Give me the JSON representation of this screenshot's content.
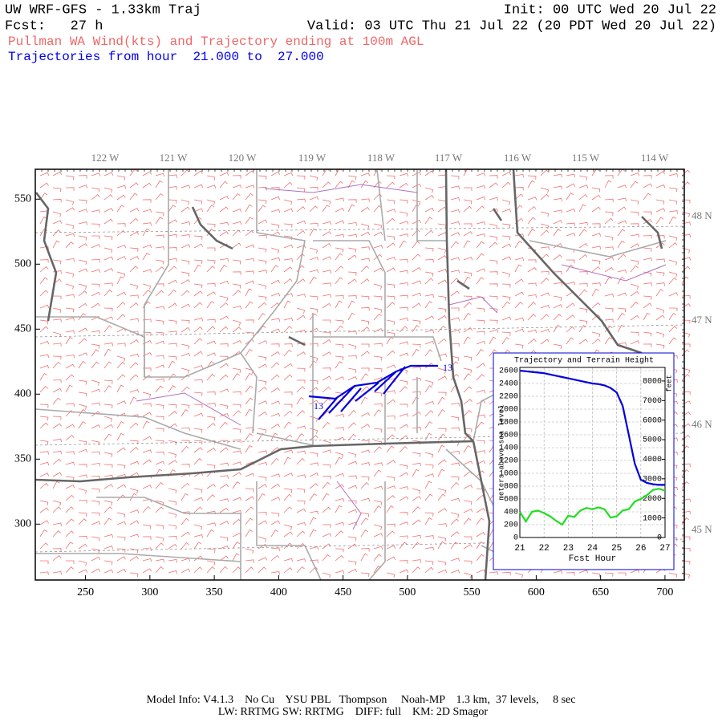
{
  "header": {
    "line1_left": "UW WRF-GFS - 1.33km Traj",
    "line1_right": "Init: 00 UTC Wed 20 Jul 22",
    "line2_left": "Fcst:   27 h",
    "line2_right": "Valid: 03 UTC Thu 21 Jul 22 (20 PDT Wed 20 Jul 22)",
    "line3": "Pullman WA Wind(kts) and Trajectory ending at 100m AGL",
    "line4": "Trajectories from hour  21.000 to  27.000"
  },
  "map": {
    "xlim": [
      211,
      715
    ],
    "ylim": [
      257,
      573
    ],
    "xticks": [
      250,
      300,
      350,
      400,
      450,
      500,
      550,
      600,
      650,
      700
    ],
    "yticks": [
      300,
      350,
      400,
      450,
      500,
      550
    ],
    "lon_labels": [
      "122 W",
      "121 W",
      "120 W",
      "119 W",
      "118 W",
      "117 W",
      "116 W",
      "115 W",
      "114 W"
    ],
    "lat_labels": [
      "48 N",
      "47 N",
      "46 N",
      "45 N"
    ],
    "trajectory_labels": [
      "13",
      "13"
    ]
  },
  "chart_data": {
    "type": "line",
    "title": "Trajectory and Terrain Height",
    "xlabel": "Fcst Hour",
    "ylabel": "meters above sea level",
    "y2label": "feet",
    "x": [
      21,
      21.25,
      21.5,
      21.75,
      22,
      22.25,
      22.5,
      22.75,
      23,
      23.25,
      23.5,
      23.75,
      24,
      24.25,
      24.5,
      24.75,
      25,
      25.25,
      25.5,
      25.75,
      26,
      26.25,
      26.5,
      26.75,
      27
    ],
    "xlim": [
      21,
      27
    ],
    "xticks": [
      21,
      22,
      23,
      24,
      25,
      26,
      27
    ],
    "ylim": [
      0,
      2650
    ],
    "yticks": [
      0,
      200,
      400,
      600,
      800,
      1000,
      1200,
      1400,
      1600,
      1800,
      2000,
      2200,
      2400,
      2600
    ],
    "y2lim": [
      0,
      8694
    ],
    "y2ticks": [
      0,
      1000,
      2000,
      3000,
      4000,
      5000,
      6000,
      7000,
      8000
    ],
    "grid": true,
    "series": [
      {
        "color": "#0000dd",
        "values": [
          2600,
          2590,
          2580,
          2570,
          2560,
          2540,
          2520,
          2500,
          2480,
          2460,
          2440,
          2420,
          2400,
          2390,
          2370,
          2330,
          2260,
          2050,
          1600,
          1150,
          900,
          850,
          830,
          820,
          820
        ]
      },
      {
        "color": "#22dd22",
        "values": [
          400,
          250,
          400,
          420,
          380,
          330,
          260,
          200,
          340,
          320,
          420,
          460,
          440,
          470,
          440,
          310,
          330,
          420,
          440,
          560,
          600,
          660,
          740,
          760,
          730
        ]
      }
    ]
  },
  "footer": {
    "line1": "Model Info: V4.1.3    No Cu    YSU PBL   Thompson     Noah-MP    1.3 km,  37 levels,     8 sec",
    "line2": "LW: RRTMG SW: RRTMG    DIFF: full    KM: 2D Smagor"
  }
}
